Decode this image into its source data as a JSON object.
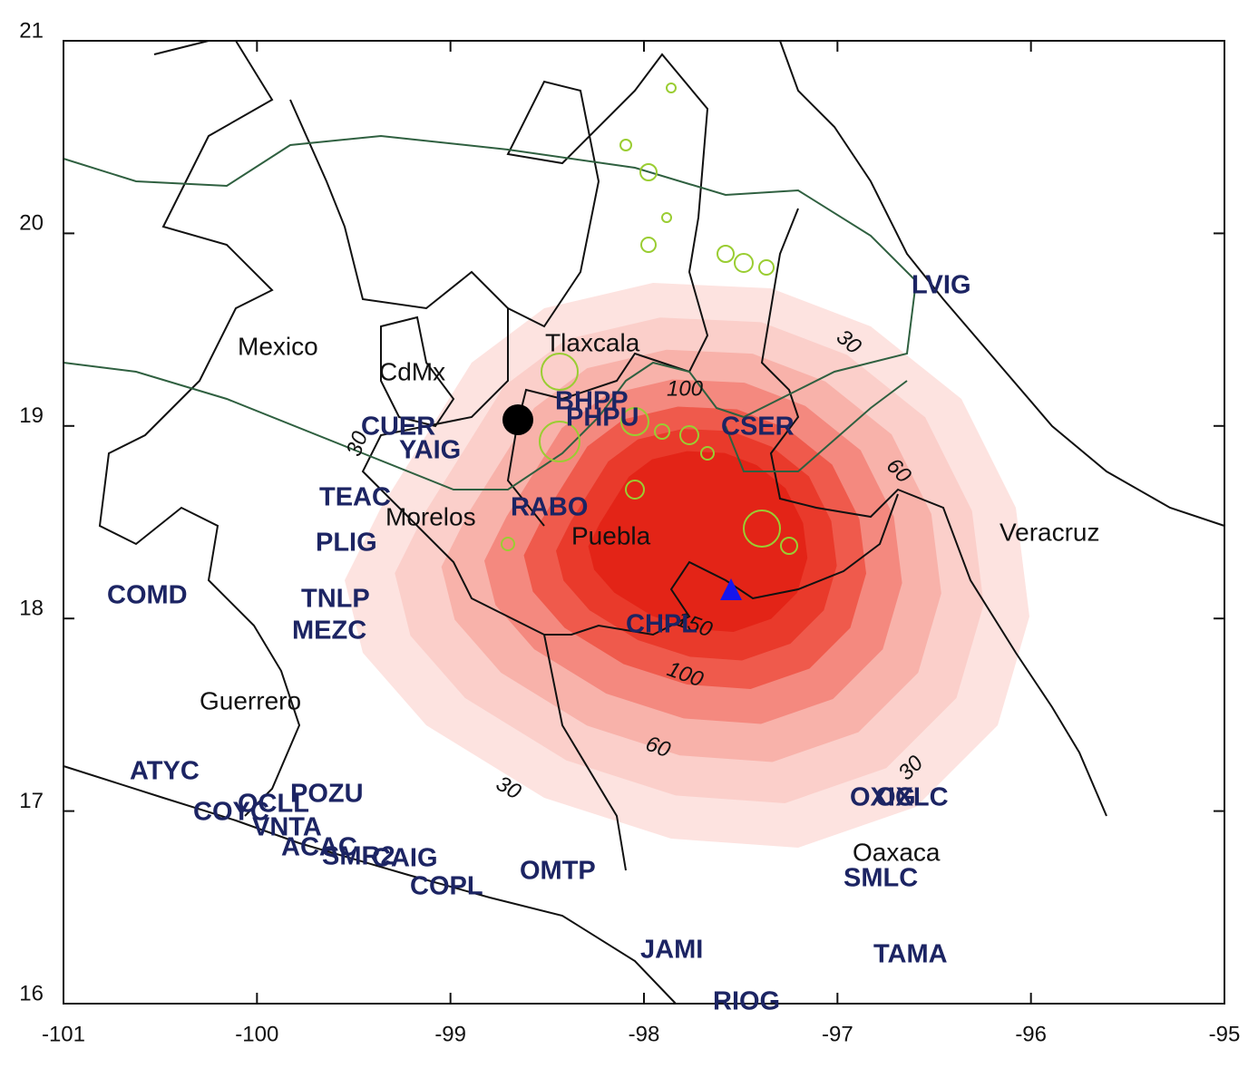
{
  "chart_data": {
    "type": "map",
    "xlim": [
      -101,
      -95
    ],
    "xticks": [
      -101,
      -100,
      -99,
      -98,
      -97,
      -96,
      -95
    ],
    "ylim": [
      16,
      21
    ],
    "yticks": [
      16,
      17,
      18,
      19,
      20,
      21
    ],
    "contour_levels": [
      30,
      60,
      100,
      150
    ],
    "regions": [
      "Mexico",
      "CdMx",
      "Tlaxcala",
      "Morelos",
      "Puebla",
      "Veracruz",
      "Guerrero",
      "Oaxaca"
    ],
    "stations": [
      "LVIG",
      "CUER",
      "YAIG",
      "BHPP",
      "PHPU",
      "CSER",
      "TEAC",
      "RABO",
      "PLIG",
      "COMD",
      "TNLP",
      "MEZC",
      "CHPL",
      "ATYC",
      "COYC",
      "OCLL",
      "POZU",
      "VNTA",
      "ACAC",
      "SMR2",
      "CAIG",
      "COPL",
      "OMTP",
      "OXIG",
      "OXLC",
      "SMLC",
      "JAMI",
      "TAMA",
      "RIOG"
    ]
  }
}
